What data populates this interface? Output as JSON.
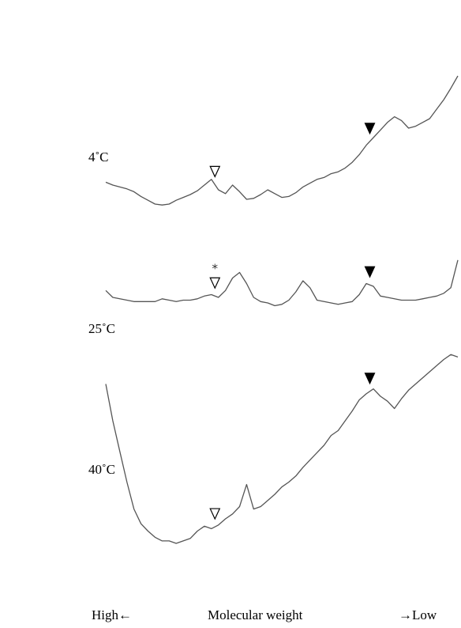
{
  "chart_data": {
    "type": "line",
    "title": "",
    "xlabel": "Molecular weight",
    "ylabel": "",
    "x_axis": {
      "left_label": "High",
      "left_arrow": "←",
      "right_arrow": "→",
      "right_label": "Low"
    },
    "x": [
      0,
      2,
      4,
      6,
      8,
      10,
      12,
      14,
      16,
      18,
      20,
      22,
      24,
      26,
      28,
      30,
      32,
      34,
      36,
      38,
      40,
      42,
      44,
      46,
      48,
      50,
      52,
      54,
      56,
      58,
      60,
      62,
      64,
      66,
      68,
      70,
      72,
      74,
      76,
      78,
      80,
      82,
      84,
      86,
      88,
      90,
      92,
      94,
      96,
      98,
      100
    ],
    "series": [
      {
        "name": "4˚C",
        "values": [
          83,
          80,
          78,
          76,
          73,
          68,
          64,
          60,
          59,
          60,
          64,
          67,
          70,
          74,
          80,
          86,
          75,
          71,
          80,
          73,
          65,
          66,
          70,
          75,
          71,
          67,
          68,
          72,
          78,
          82,
          86,
          88,
          92,
          94,
          98,
          104,
          112,
          122,
          130,
          138,
          146,
          152,
          148,
          140,
          142,
          146,
          150,
          160,
          170,
          182,
          195
        ],
        "markers": [
          {
            "type": "open-triangle",
            "x": 31
          },
          {
            "type": "filled-triangle",
            "x": 75
          }
        ]
      },
      {
        "name": "25˚C",
        "values": [
          53,
          48,
          47,
          46,
          45,
          45,
          45,
          45,
          47,
          46,
          45,
          46,
          46,
          47,
          49,
          50,
          48,
          53,
          62,
          66,
          58,
          48,
          45,
          44,
          42,
          43,
          46,
          52,
          60,
          55,
          46,
          45,
          44,
          43,
          44,
          45,
          50,
          58,
          56,
          49,
          48,
          47,
          46,
          46,
          46,
          47,
          48,
          49,
          51,
          55,
          75
        ],
        "markers": [
          {
            "type": "open-triangle-asterisk",
            "x": 31
          },
          {
            "type": "filled-triangle",
            "x": 75
          }
        ]
      },
      {
        "name": "40˚C",
        "values": [
          190,
          160,
          135,
          110,
          88,
          76,
          70,
          65,
          62,
          62,
          60,
          62,
          64,
          70,
          74,
          72,
          75,
          80,
          84,
          90,
          108,
          88,
          90,
          95,
          100,
          106,
          110,
          115,
          122,
          128,
          134,
          140,
          148,
          152,
          160,
          168,
          177,
          182,
          186,
          180,
          176,
          170,
          178,
          185,
          190,
          195,
          200,
          205,
          210,
          214,
          212
        ],
        "markers": [
          {
            "type": "open-triangle",
            "x": 31
          },
          {
            "type": "filled-triangle",
            "x": 75
          }
        ]
      }
    ],
    "annotations": [
      "*"
    ],
    "grid": false,
    "legend": "none",
    "colors": {
      "trace": "#555555",
      "marker": "#000000"
    }
  }
}
